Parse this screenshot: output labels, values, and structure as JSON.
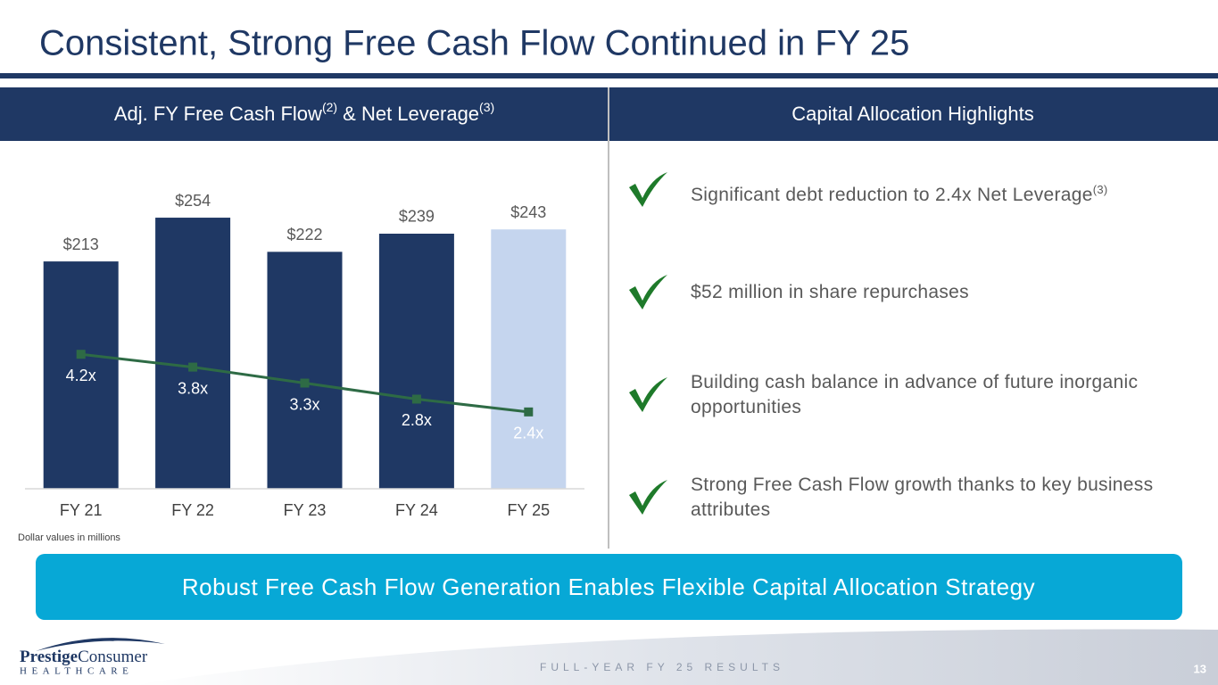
{
  "title": "Consistent, Strong Free Cash Flow Continued in FY 25",
  "chart_data": {
    "type": "bar",
    "title": [
      "Adj. FY Free Cash Flow",
      "(2)",
      " & Net Leverage",
      "(3)"
    ],
    "categories": [
      "FY 21",
      "FY 22",
      "FY 23",
      "FY 24",
      "FY 25"
    ],
    "series": [
      {
        "type": "bar",
        "values": [
          213,
          254,
          222,
          239,
          243
        ],
        "value_labels": [
          "$213",
          "$254",
          "$222",
          "$239",
          "$243"
        ],
        "colors": [
          "#1f3864",
          "#1f3864",
          "#1f3864",
          "#1f3864",
          "#c5d5ee"
        ],
        "label_color": "#595959"
      },
      {
        "type": "line",
        "axis": "y2",
        "values": [
          4.2,
          3.8,
          3.3,
          2.8,
          2.4
        ],
        "value_labels": [
          "4.2x",
          "3.8x",
          "3.3x",
          "2.8x",
          "2.4x"
        ],
        "color": "#2e6b45",
        "label_color": "#ffffff"
      }
    ],
    "ylim": [
      0,
      300
    ],
    "y2lim": [
      0,
      10
    ],
    "note": "Dollar values in millions"
  },
  "highlights_header": "Capital Allocation Highlights",
  "highlights": [
    {
      "text": "Significant debt reduction to 2.4x Net Leverage",
      "note": "(3)"
    },
    {
      "text": "$52 million in share repurchases"
    },
    {
      "text": "Building cash balance in advance of future inorganic opportunities"
    },
    {
      "text": "Strong Free Cash Flow growth thanks to key business attributes"
    }
  ],
  "banner": "Robust Free Cash Flow Generation Enables Flexible Capital Allocation Strategy",
  "footer": {
    "text": "FULL-YEAR FY 25 RESULTS",
    "page": "13"
  },
  "logo": {
    "name": "Prestige",
    "name2": "Consumer",
    "sub": "HEALTHCARE"
  }
}
